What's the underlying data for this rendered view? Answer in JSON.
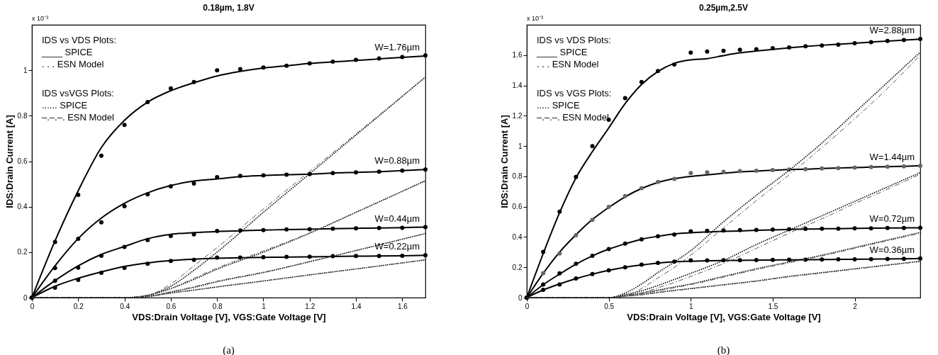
{
  "chart_data": [
    {
      "type": "line",
      "title": "0.18µm, 1.8V",
      "xlabel": "VDS:Drain Voltage [V], VGS:Gate Voltage [V]",
      "ylabel": "IDS:Drain Current [A]",
      "xlim": [
        0,
        1.7
      ],
      "xticks": [
        0,
        0.2,
        0.4,
        0.6,
        0.8,
        1,
        1.2,
        1.4,
        1.6
      ],
      "ylim": [
        0,
        1.2
      ],
      "yticks": [
        0,
        0.2,
        0.4,
        0.6,
        0.8,
        1
      ],
      "grid": false,
      "annotations": [
        "x 10⁻³",
        "IDS vs VDS Plots:",
        "____ SPICE",
        ". . .  ESN Model",
        "IDS vsVGS Plots:",
        "...... SPICE",
        "–.–.–. ESN Model",
        "(a)"
      ],
      "series": [
        {
          "type": "line",
          "name": "W=1.76µm",
          "line_style": "solid",
          "color": "#000000",
          "x": [
            0,
            0.1,
            0.2,
            0.3,
            0.4,
            0.5,
            0.6,
            0.7,
            0.8,
            0.9,
            1.0,
            1.1,
            1.2,
            1.3,
            1.4,
            1.5,
            1.6,
            1.7
          ],
          "values": [
            0,
            0.25,
            0.47,
            0.66,
            0.78,
            0.86,
            0.91,
            0.945,
            0.975,
            0.995,
            1.01,
            1.02,
            1.03,
            1.037,
            1.043,
            1.05,
            1.057,
            1.063
          ]
        },
        {
          "type": "line",
          "name": "W=0.88µm",
          "line_style": "solid",
          "color": "#000000",
          "x": [
            0,
            0.1,
            0.2,
            0.3,
            0.4,
            0.5,
            0.6,
            0.7,
            0.8,
            0.9,
            1.0,
            1.1,
            1.2,
            1.3,
            1.4,
            1.5,
            1.6,
            1.7
          ],
          "values": [
            0,
            0.14,
            0.26,
            0.35,
            0.415,
            0.461,
            0.493,
            0.513,
            0.522,
            0.532,
            0.537,
            0.541,
            0.543,
            0.548,
            0.551,
            0.554,
            0.559,
            0.563
          ]
        },
        {
          "type": "line",
          "name": "W=0.44µm",
          "line_style": "solid",
          "color": "#000000",
          "x": [
            0,
            0.1,
            0.2,
            0.3,
            0.4,
            0.5,
            0.6,
            0.7,
            0.8,
            0.9,
            1.0,
            1.1,
            1.2,
            1.3,
            1.4,
            1.5,
            1.6,
            1.7
          ],
          "values": [
            0,
            0.075,
            0.14,
            0.19,
            0.225,
            0.259,
            0.278,
            0.286,
            0.291,
            0.294,
            0.297,
            0.299,
            0.301,
            0.303,
            0.305,
            0.306,
            0.308,
            0.31
          ]
        },
        {
          "type": "line",
          "name": "W=0.22µm",
          "line_style": "solid",
          "color": "#000000",
          "x": [
            0,
            0.1,
            0.2,
            0.3,
            0.4,
            0.5,
            0.6,
            0.7,
            0.8,
            0.9,
            1.0,
            1.1,
            1.2,
            1.3,
            1.4,
            1.5,
            1.6,
            1.7
          ],
          "values": [
            0,
            0.05,
            0.085,
            0.113,
            0.137,
            0.153,
            0.163,
            0.169,
            0.173,
            0.175,
            0.177,
            0.178,
            0.179,
            0.181,
            0.182,
            0.183,
            0.184,
            0.186
          ]
        },
        {
          "type": "scatter",
          "marker": "circle",
          "color": "#000000",
          "x": [
            0,
            0.1,
            0.2,
            0.3,
            0.4,
            0.5,
            0.6,
            0.7,
            0.8,
            0.9,
            1.0,
            1.1,
            1.2,
            1.3,
            1.4,
            1.5,
            1.6,
            1.7
          ],
          "values": [
            0,
            0.245,
            0.452,
            0.624,
            0.76,
            0.86,
            0.92,
            0.948,
            1.0,
            1.005,
            1.012,
            1.02,
            1.03,
            1.038,
            1.046,
            1.052,
            1.058,
            1.065
          ]
        },
        {
          "type": "scatter",
          "marker": "circle",
          "color": "#000000",
          "x": [
            0,
            0.1,
            0.2,
            0.3,
            0.4,
            0.5,
            0.6,
            0.7,
            0.8,
            0.9,
            1.0,
            1.1,
            1.2,
            1.3,
            1.4,
            1.5,
            1.6,
            1.7
          ],
          "values": [
            0,
            0.13,
            0.259,
            0.331,
            0.402,
            0.454,
            0.489,
            0.502,
            0.53,
            0.535,
            0.538,
            0.541,
            0.543,
            0.548,
            0.551,
            0.554,
            0.559,
            0.563
          ]
        },
        {
          "type": "scatter",
          "marker": "circle",
          "color": "#000000",
          "x": [
            0,
            0.1,
            0.2,
            0.3,
            0.4,
            0.5,
            0.6,
            0.7,
            0.8,
            0.9,
            1.0,
            1.1,
            1.2,
            1.3,
            1.4,
            1.5,
            1.6,
            1.7
          ],
          "values": [
            0,
            0.074,
            0.132,
            0.184,
            0.223,
            0.253,
            0.271,
            0.278,
            0.293,
            0.295,
            0.297,
            0.3,
            0.301,
            0.303,
            0.305,
            0.306,
            0.307,
            0.31
          ]
        },
        {
          "type": "scatter",
          "marker": "circle",
          "color": "#000000",
          "x": [
            0,
            0.1,
            0.2,
            0.3,
            0.4,
            0.5,
            0.6,
            0.7,
            0.8,
            0.9,
            1.0,
            1.1,
            1.2,
            1.3,
            1.4,
            1.5,
            1.6,
            1.7
          ],
          "values": [
            0,
            0.044,
            0.078,
            0.109,
            0.131,
            0.149,
            0.161,
            0.166,
            0.176,
            0.176,
            0.178,
            0.179,
            0.18,
            0.182,
            0.183,
            0.183,
            0.184,
            0.186
          ]
        },
        {
          "type": "line",
          "line_style": "dotted",
          "color": "#000000",
          "x": [
            0,
            0.4,
            0.5,
            0.6,
            0.7,
            0.8,
            1.0,
            1.2,
            1.4,
            1.7
          ],
          "values": [
            0,
            0,
            0.01,
            0.05,
            0.12,
            0.2,
            0.375,
            0.545,
            0.715,
            0.97
          ]
        },
        {
          "type": "line",
          "line_style": "dotted",
          "color": "#000000",
          "x": [
            0,
            0.4,
            0.5,
            0.6,
            0.7,
            0.8,
            1.0,
            1.2,
            1.4,
            1.7
          ],
          "values": [
            0,
            0,
            0.01,
            0.04,
            0.08,
            0.125,
            0.2,
            0.283,
            0.375,
            0.514
          ]
        },
        {
          "type": "line",
          "line_style": "dotted",
          "color": "#000000",
          "x": [
            0,
            0.4,
            0.5,
            0.6,
            0.7,
            0.8,
            1.0,
            1.2,
            1.4,
            1.7
          ],
          "values": [
            0,
            0,
            0.005,
            0.025,
            0.045,
            0.07,
            0.11,
            0.158,
            0.207,
            0.282
          ]
        },
        {
          "type": "line",
          "line_style": "dotted",
          "color": "#000000",
          "x": [
            0,
            0.4,
            0.5,
            0.6,
            0.7,
            0.8,
            1.0,
            1.2,
            1.4,
            1.7
          ],
          "values": [
            0,
            0,
            0.005,
            0.02,
            0.033,
            0.047,
            0.073,
            0.1,
            0.126,
            0.166
          ]
        },
        {
          "type": "line",
          "line_style": "dashed",
          "color": "#555555",
          "x": [
            0,
            0.4,
            0.5,
            0.6,
            0.7,
            0.8,
            1.0,
            1.2,
            1.4,
            1.7
          ],
          "values": [
            0,
            0,
            0.01,
            0.06,
            0.14,
            0.22,
            0.39,
            0.555,
            0.72,
            0.97
          ]
        },
        {
          "type": "line",
          "line_style": "dashed",
          "color": "#555555",
          "x": [
            0,
            0.4,
            0.5,
            0.6,
            0.7,
            0.8,
            1.0,
            1.2,
            1.4,
            1.7
          ],
          "values": [
            0,
            0,
            0.01,
            0.04,
            0.085,
            0.13,
            0.205,
            0.285,
            0.375,
            0.514
          ]
        },
        {
          "type": "line",
          "line_style": "dashed",
          "color": "#555555",
          "x": [
            0,
            0.4,
            0.5,
            0.6,
            0.7,
            0.8,
            1.0,
            1.2,
            1.4,
            1.7
          ],
          "values": [
            0,
            0,
            0.005,
            0.025,
            0.048,
            0.072,
            0.112,
            0.158,
            0.207,
            0.282
          ]
        },
        {
          "type": "line",
          "line_style": "dashed",
          "color": "#555555",
          "x": [
            0,
            0.4,
            0.5,
            0.6,
            0.7,
            0.8,
            1.0,
            1.2,
            1.4,
            1.7
          ],
          "values": [
            0,
            0,
            0.005,
            0.02,
            0.033,
            0.047,
            0.073,
            0.1,
            0.126,
            0.166
          ]
        }
      ]
    },
    {
      "type": "line",
      "title": "0.25µm,2.5V",
      "xlabel": "VDS:Drain Voltage [V], VGS:Gate Voltage [V]",
      "ylabel": "IDS:Drain Current [A]",
      "xlim": [
        0,
        2.4
      ],
      "xticks": [
        0,
        0.5,
        1,
        1.5,
        2
      ],
      "ylim": [
        0,
        1.8
      ],
      "yticks": [
        0,
        0.2,
        0.4,
        0.6,
        0.8,
        1,
        1.2,
        1.4,
        1.6
      ],
      "grid": false,
      "annotations": [
        "x 10⁻³",
        "IDS vs VDS Plots:",
        "____ SPICE",
        ". . .  ESN Model",
        "IDS vs VGS Plots:",
        "..... SPICE",
        "–.–.–. ESN Model",
        "(b)"
      ],
      "series": [
        {
          "type": "line",
          "name": "W=2.88µm",
          "line_style": "solid",
          "color": "#000000",
          "x": [
            0,
            0.1,
            0.2,
            0.3,
            0.4,
            0.5,
            0.6,
            0.7,
            0.8,
            0.9,
            1.0,
            1.1,
            1.2,
            1.3,
            1.4,
            1.5,
            1.6,
            1.7,
            1.8,
            1.9,
            2.0,
            2.1,
            2.2,
            2.3,
            2.4
          ],
          "values": [
            0,
            0.29,
            0.56,
            0.79,
            0.963,
            1.12,
            1.28,
            1.406,
            1.492,
            1.546,
            1.569,
            1.577,
            1.597,
            1.615,
            1.627,
            1.638,
            1.648,
            1.657,
            1.665,
            1.672,
            1.679,
            1.686,
            1.693,
            1.699,
            1.705
          ]
        },
        {
          "type": "line",
          "name": "W=1.44µm",
          "line_style": "solid",
          "color": "#000000",
          "x": [
            0,
            0.1,
            0.2,
            0.3,
            0.4,
            0.5,
            0.6,
            0.7,
            0.8,
            0.9,
            1.0,
            1.1,
            1.2,
            1.3,
            1.4,
            1.5,
            1.6,
            1.7,
            1.8,
            1.9,
            2.0,
            2.1,
            2.2,
            2.3,
            2.4
          ],
          "values": [
            0,
            0.16,
            0.3,
            0.415,
            0.515,
            0.595,
            0.665,
            0.72,
            0.76,
            0.785,
            0.8,
            0.81,
            0.82,
            0.83,
            0.835,
            0.84,
            0.845,
            0.847,
            0.852,
            0.855,
            0.858,
            0.861,
            0.864,
            0.866,
            0.87
          ]
        },
        {
          "type": "line",
          "name": "W=0.72µm",
          "line_style": "solid",
          "color": "#000000",
          "x": [
            0,
            0.1,
            0.2,
            0.3,
            0.4,
            0.5,
            0.6,
            0.7,
            0.8,
            0.9,
            1.0,
            1.1,
            1.2,
            1.3,
            1.4,
            1.5,
            1.6,
            1.7,
            1.8,
            1.9,
            2.0,
            2.1,
            2.2,
            2.3,
            2.4
          ],
          "values": [
            0,
            0.085,
            0.155,
            0.22,
            0.275,
            0.32,
            0.355,
            0.385,
            0.405,
            0.42,
            0.428,
            0.433,
            0.437,
            0.44,
            0.444,
            0.447,
            0.45,
            0.452,
            0.454,
            0.455,
            0.457,
            0.458,
            0.459,
            0.46,
            0.461
          ]
        },
        {
          "type": "line",
          "name": "W=0.36µm",
          "line_style": "solid",
          "color": "#000000",
          "x": [
            0,
            0.1,
            0.2,
            0.3,
            0.4,
            0.5,
            0.6,
            0.7,
            0.8,
            0.9,
            1.0,
            1.1,
            1.2,
            1.3,
            1.4,
            1.5,
            1.6,
            1.7,
            1.8,
            1.9,
            2.0,
            2.1,
            2.2,
            2.3,
            2.4
          ],
          "values": [
            0,
            0.05,
            0.09,
            0.125,
            0.155,
            0.18,
            0.2,
            0.215,
            0.228,
            0.236,
            0.24,
            0.243,
            0.245,
            0.246,
            0.247,
            0.248,
            0.249,
            0.25,
            0.251,
            0.252,
            0.253,
            0.254,
            0.255,
            0.256,
            0.258
          ]
        },
        {
          "type": "scatter",
          "marker": "circle",
          "color": "#000000",
          "x": [
            0,
            0.1,
            0.2,
            0.3,
            0.4,
            0.5,
            0.6,
            0.7,
            0.8,
            0.9,
            1.0,
            1.1,
            1.2,
            1.3,
            1.4,
            1.5,
            1.6,
            1.7,
            1.8,
            1.9,
            2.0,
            2.1,
            2.2,
            2.3,
            2.4
          ],
          "values": [
            0,
            0.301,
            0.567,
            0.796,
            0.999,
            1.173,
            1.316,
            1.422,
            1.495,
            1.538,
            1.616,
            1.624,
            1.628,
            1.635,
            1.639,
            1.646,
            1.65,
            1.658,
            1.663,
            1.669,
            1.678,
            1.686,
            1.694,
            1.7,
            1.706
          ]
        },
        {
          "type": "scatter",
          "marker": "circle",
          "color": "#666666",
          "x": [
            0,
            0.1,
            0.2,
            0.3,
            0.4,
            0.5,
            0.6,
            0.7,
            0.8,
            0.9,
            1.0,
            1.1,
            1.2,
            1.3,
            1.4,
            1.5,
            1.6,
            1.7,
            1.8,
            1.9,
            2.0,
            2.1,
            2.2,
            2.3,
            2.4
          ],
          "values": [
            0,
            0.161,
            0.291,
            0.412,
            0.513,
            0.598,
            0.67,
            0.722,
            0.763,
            0.783,
            0.822,
            0.826,
            0.83,
            0.835,
            0.837,
            0.841,
            0.845,
            0.847,
            0.852,
            0.855,
            0.858,
            0.861,
            0.864,
            0.866,
            0.87
          ]
        },
        {
          "type": "scatter",
          "marker": "circle",
          "color": "#000000",
          "x": [
            0,
            0.1,
            0.2,
            0.3,
            0.4,
            0.5,
            0.6,
            0.7,
            0.8,
            0.9,
            1.0,
            1.1,
            1.2,
            1.3,
            1.4,
            1.5,
            1.6,
            1.7,
            1.8,
            1.9,
            2.0,
            2.1,
            2.2,
            2.3,
            2.4
          ],
          "values": [
            0,
            0.087,
            0.16,
            0.223,
            0.276,
            0.32,
            0.357,
            0.385,
            0.404,
            0.416,
            0.437,
            0.441,
            0.443,
            0.445,
            0.447,
            0.449,
            0.451,
            0.453,
            0.455,
            0.455,
            0.457,
            0.457,
            0.459,
            0.459,
            0.461
          ]
        },
        {
          "type": "scatter",
          "marker": "circle",
          "color": "#000000",
          "x": [
            0,
            0.1,
            0.2,
            0.3,
            0.4,
            0.5,
            0.6,
            0.7,
            0.8,
            0.9,
            1.0,
            1.1,
            1.2,
            1.3,
            1.4,
            1.5,
            1.6,
            1.7,
            1.8,
            1.9,
            2.0,
            2.1,
            2.2,
            2.3,
            2.4
          ],
          "values": [
            0,
            0.052,
            0.087,
            0.126,
            0.155,
            0.18,
            0.2,
            0.217,
            0.229,
            0.237,
            0.245,
            0.246,
            0.247,
            0.247,
            0.248,
            0.249,
            0.25,
            0.25,
            0.251,
            0.252,
            0.253,
            0.254,
            0.255,
            0.256,
            0.258
          ]
        },
        {
          "type": "line",
          "line_style": "dotted",
          "color": "#000000",
          "x": [
            0,
            0.5,
            0.6,
            0.7,
            0.8,
            0.9,
            1.0,
            1.2,
            1.4,
            1.6,
            1.8,
            2.0,
            2.2,
            2.4
          ],
          "values": [
            0,
            0,
            0.03,
            0.09,
            0.165,
            0.235,
            0.31,
            0.5,
            0.675,
            0.84,
            1.02,
            1.22,
            1.42,
            1.62
          ]
        },
        {
          "type": "line",
          "line_style": "dotted",
          "color": "#000000",
          "x": [
            0,
            0.5,
            0.6,
            0.7,
            0.8,
            0.9,
            1.0,
            1.2,
            1.4,
            1.6,
            1.8,
            2.0,
            2.2,
            2.4
          ],
          "values": [
            0,
            0,
            0.02,
            0.045,
            0.08,
            0.12,
            0.16,
            0.245,
            0.35,
            0.445,
            0.54,
            0.635,
            0.73,
            0.825
          ]
        },
        {
          "type": "line",
          "line_style": "dotted",
          "color": "#000000",
          "x": [
            0,
            0.5,
            0.6,
            0.7,
            0.8,
            0.9,
            1.0,
            1.2,
            1.4,
            1.6,
            1.8,
            2.0,
            2.2,
            2.4
          ],
          "values": [
            0,
            0,
            0.015,
            0.03,
            0.05,
            0.07,
            0.09,
            0.14,
            0.19,
            0.235,
            0.28,
            0.33,
            0.38,
            0.43
          ]
        },
        {
          "type": "line",
          "line_style": "dotted",
          "color": "#000000",
          "x": [
            0,
            0.5,
            0.6,
            0.7,
            0.8,
            0.9,
            1.0,
            1.2,
            1.4,
            1.6,
            1.8,
            2.0,
            2.2,
            2.4
          ],
          "values": [
            0,
            0,
            0.01,
            0.02,
            0.035,
            0.048,
            0.06,
            0.085,
            0.11,
            0.14,
            0.165,
            0.19,
            0.215,
            0.24
          ]
        },
        {
          "type": "line",
          "line_style": "dashed",
          "color": "#555555",
          "x": [
            0,
            0.5,
            0.6,
            0.7,
            0.8,
            0.9,
            1.0,
            1.2,
            1.4,
            1.6,
            1.8,
            2.0,
            2.2,
            2.4
          ],
          "values": [
            0,
            0,
            0.01,
            0.06,
            0.13,
            0.2,
            0.28,
            0.46,
            0.64,
            0.81,
            0.99,
            1.18,
            1.38,
            1.6
          ]
        },
        {
          "type": "line",
          "line_style": "dashed",
          "color": "#555555",
          "x": [
            0,
            0.5,
            0.6,
            0.7,
            0.8,
            0.9,
            1.0,
            1.2,
            1.4,
            1.6,
            1.8,
            2.0,
            2.2,
            2.4
          ],
          "values": [
            0,
            0,
            0.01,
            0.03,
            0.065,
            0.1,
            0.14,
            0.225,
            0.325,
            0.425,
            0.52,
            0.62,
            0.715,
            0.815
          ]
        },
        {
          "type": "line",
          "line_style": "dashed",
          "color": "#555555",
          "x": [
            0,
            0.5,
            0.6,
            0.7,
            0.8,
            0.9,
            1.0,
            1.2,
            1.4,
            1.6,
            1.8,
            2.0,
            2.2,
            2.4
          ],
          "values": [
            0,
            0,
            0.01,
            0.025,
            0.045,
            0.065,
            0.085,
            0.135,
            0.185,
            0.23,
            0.275,
            0.325,
            0.375,
            0.425
          ]
        },
        {
          "type": "line",
          "line_style": "dashed",
          "color": "#555555",
          "x": [
            0,
            0.5,
            0.6,
            0.7,
            0.8,
            0.9,
            1.0,
            1.2,
            1.4,
            1.6,
            1.8,
            2.0,
            2.2,
            2.4
          ],
          "values": [
            0,
            0,
            0.008,
            0.018,
            0.032,
            0.045,
            0.058,
            0.083,
            0.108,
            0.137,
            0.162,
            0.188,
            0.213,
            0.238
          ]
        }
      ]
    }
  ]
}
